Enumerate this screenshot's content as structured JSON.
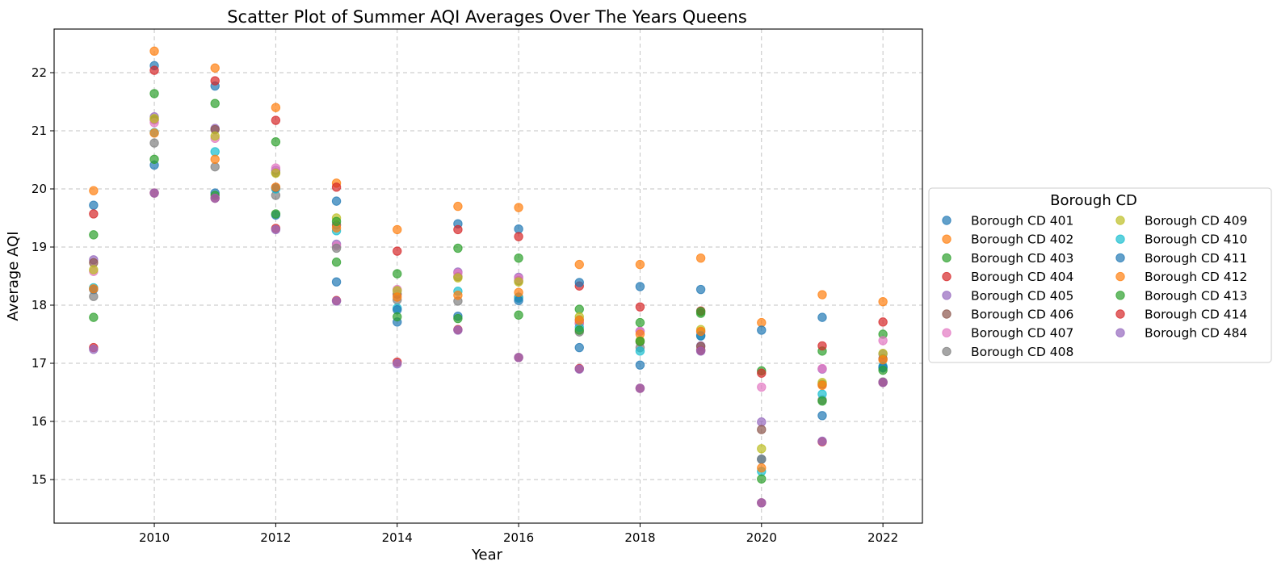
{
  "chart_data": {
    "type": "scatter",
    "title": "Scatter Plot of Summer AQI Averages Over The Years Queens",
    "xlabel": "Year",
    "ylabel": "Average AQI",
    "xlim": [
      2008.35,
      2022.65
    ],
    "ylim": [
      14.25,
      22.75
    ],
    "x_ticks": [
      2010,
      2012,
      2014,
      2016,
      2018,
      2020,
      2022
    ],
    "y_ticks": [
      15,
      16,
      17,
      18,
      19,
      20,
      21,
      22
    ],
    "grid": true,
    "legend": {
      "title": "Borough CD",
      "placement": "center-right-outside",
      "columns": 2
    },
    "x": [
      2009,
      2010,
      2011,
      2012,
      2013,
      2014,
      2015,
      2016,
      2017,
      2018,
      2019,
      2020,
      2021,
      2022
    ],
    "series": [
      {
        "name": "Borough CD 401",
        "color": "#1f77b4",
        "values": [
          19.72,
          22.12,
          21.77,
          19.55,
          18.4,
          17.71,
          19.4,
          19.31,
          17.27,
          16.97,
          18.27,
          15.35,
          16.1,
          16.92
        ]
      },
      {
        "name": "Borough CD 402",
        "color": "#ff7f0e",
        "values": [
          19.97,
          22.37,
          22.08,
          21.4,
          20.1,
          19.3,
          19.7,
          19.68,
          18.7,
          18.7,
          18.81,
          17.7,
          18.18,
          18.06
        ]
      },
      {
        "name": "Borough CD 403",
        "color": "#2ca02c",
        "values": [
          19.21,
          21.64,
          21.47,
          20.81,
          18.74,
          18.54,
          18.98,
          18.81,
          17.93,
          17.7,
          17.86,
          16.87,
          17.21,
          17.5
        ]
      },
      {
        "name": "Borough CD 404",
        "color": "#d62728",
        "values": [
          19.57,
          22.04,
          21.86,
          21.18,
          20.03,
          18.93,
          19.3,
          19.18,
          18.33,
          17.97,
          17.9,
          16.83,
          17.3,
          17.71
        ]
      },
      {
        "name": "Borough CD 405",
        "color": "#9467bd",
        "values": [
          18.78,
          21.24,
          21.04,
          20.32,
          19.05,
          18.25,
          18.57,
          18.48,
          17.75,
          17.55,
          17.3,
          15.99,
          16.9,
          17.16
        ]
      },
      {
        "name": "Borough CD 406",
        "color": "#8c564b",
        "values": [
          18.73,
          21.19,
          21.02,
          20.28,
          19.38,
          18.19,
          18.49,
          18.42,
          17.69,
          17.37,
          17.29,
          15.86,
          16.64,
          17.08
        ]
      },
      {
        "name": "Borough CD 407",
        "color": "#e377c2",
        "values": [
          18.58,
          21.14,
          20.87,
          20.36,
          19.02,
          18.27,
          18.55,
          18.46,
          17.69,
          17.55,
          17.54,
          16.59,
          16.91,
          17.39
        ]
      },
      {
        "name": "Borough CD 408",
        "color": "#7f7f7f",
        "values": [
          18.15,
          20.79,
          20.38,
          19.89,
          18.98,
          18.09,
          18.07,
          18.14,
          17.54,
          17.27,
          17.23,
          15.35,
          16.37,
          16.68
        ]
      },
      {
        "name": "Borough CD 409",
        "color": "#bcbd22",
        "values": [
          18.61,
          21.21,
          20.91,
          20.27,
          19.5,
          18.25,
          18.47,
          18.4,
          17.8,
          17.39,
          17.58,
          15.53,
          16.67,
          17.17
        ]
      },
      {
        "name": "Borough CD 410",
        "color": "#17becf",
        "values": [
          18.3,
          20.97,
          20.64,
          20.0,
          19.28,
          17.95,
          18.24,
          18.12,
          17.62,
          17.21,
          17.48,
          15.14,
          16.47,
          16.95
        ]
      },
      {
        "name": "Borough CD 411",
        "color": "#1f77b4",
        "values": [
          18.27,
          20.41,
          19.93,
          20.02,
          19.79,
          17.92,
          17.81,
          18.08,
          18.39,
          18.32,
          17.47,
          17.57,
          17.79,
          16.93
        ]
      },
      {
        "name": "Borough CD 412",
        "color": "#ff7f0e",
        "values": [
          18.28,
          20.96,
          20.51,
          20.03,
          19.33,
          18.14,
          18.17,
          18.22,
          17.74,
          17.5,
          17.55,
          15.2,
          16.62,
          17.06
        ]
      },
      {
        "name": "Borough CD 413",
        "color": "#2ca02c",
        "values": [
          17.79,
          20.51,
          19.89,
          19.57,
          19.44,
          17.8,
          17.77,
          17.83,
          17.57,
          17.38,
          17.89,
          15.01,
          16.35,
          16.88
        ]
      },
      {
        "name": "Borough CD 414",
        "color": "#d62728",
        "values": [
          17.27,
          19.93,
          19.84,
          19.32,
          18.08,
          17.02,
          17.58,
          17.1,
          16.91,
          16.57,
          17.22,
          14.6,
          15.65,
          16.67
        ]
      },
      {
        "name": "Borough CD 484",
        "color": "#9467bd",
        "values": [
          17.24,
          19.93,
          19.84,
          19.3,
          18.07,
          16.99,
          17.57,
          17.1,
          16.9,
          16.57,
          17.21,
          14.6,
          15.66,
          16.67
        ]
      }
    ]
  }
}
